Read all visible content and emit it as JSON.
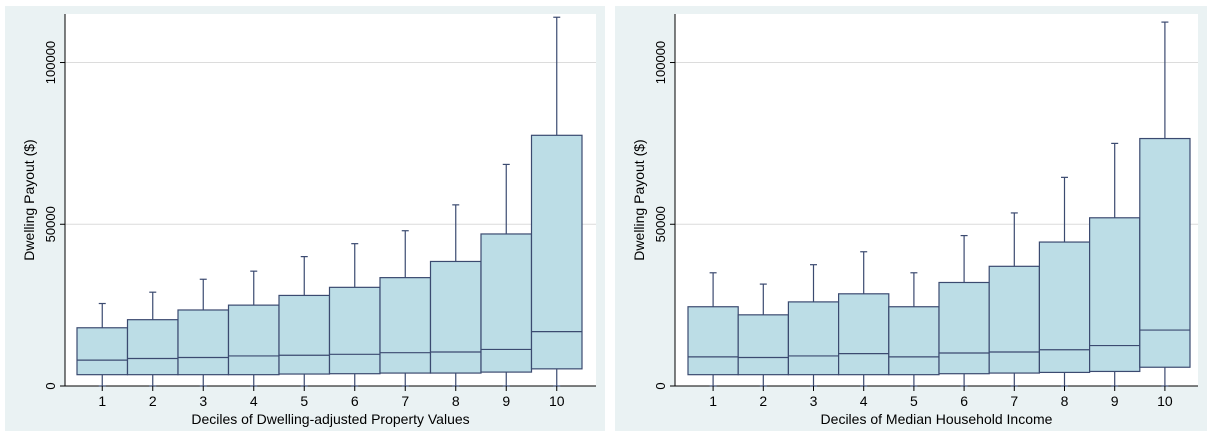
{
  "chart_data": [
    {
      "type": "box",
      "xlabel": "Deciles of Dwelling-adjusted Property Values",
      "ylabel": "Dwelling Payout ($)",
      "ylim": [
        0,
        115000
      ],
      "yticks": [
        0,
        50000,
        100000
      ],
      "categories": [
        "1",
        "2",
        "3",
        "4",
        "5",
        "6",
        "7",
        "8",
        "9",
        "10"
      ],
      "boxes": [
        {
          "low": 0,
          "q1": 3500,
          "median": 8000,
          "q3": 18000,
          "high": 25500
        },
        {
          "low": 0,
          "q1": 3500,
          "median": 8500,
          "q3": 20500,
          "high": 29000
        },
        {
          "low": 0,
          "q1": 3500,
          "median": 8800,
          "q3": 23500,
          "high": 33000
        },
        {
          "low": 0,
          "q1": 3500,
          "median": 9300,
          "q3": 25000,
          "high": 35500
        },
        {
          "low": 0,
          "q1": 3700,
          "median": 9500,
          "q3": 28000,
          "high": 40000
        },
        {
          "low": 0,
          "q1": 3800,
          "median": 9800,
          "q3": 30500,
          "high": 44000
        },
        {
          "low": 0,
          "q1": 4000,
          "median": 10300,
          "q3": 33500,
          "high": 48000
        },
        {
          "low": 0,
          "q1": 4000,
          "median": 10500,
          "q3": 38500,
          "high": 56000
        },
        {
          "low": 0,
          "q1": 4300,
          "median": 11300,
          "q3": 47000,
          "high": 68500
        },
        {
          "low": 0,
          "q1": 5300,
          "median": 16800,
          "q3": 77500,
          "high": 114000
        }
      ],
      "colors": {
        "box_fill": "#bcdde6",
        "stroke": "#3b4a70",
        "grid": "#dcdcdc"
      }
    },
    {
      "type": "box",
      "xlabel": "Deciles of Median Household Income",
      "ylabel": "Dwelling Payout ($)",
      "ylim": [
        0,
        115000
      ],
      "yticks": [
        0,
        50000,
        100000
      ],
      "categories": [
        "1",
        "2",
        "3",
        "4",
        "5",
        "6",
        "7",
        "8",
        "9",
        "10"
      ],
      "boxes": [
        {
          "low": 0,
          "q1": 3500,
          "median": 9000,
          "q3": 24500,
          "high": 35000
        },
        {
          "low": 0,
          "q1": 3500,
          "median": 8800,
          "q3": 22000,
          "high": 31500
        },
        {
          "low": 0,
          "q1": 3500,
          "median": 9300,
          "q3": 26000,
          "high": 37500
        },
        {
          "low": 0,
          "q1": 3500,
          "median": 10000,
          "q3": 28500,
          "high": 41500
        },
        {
          "low": 0,
          "q1": 3500,
          "median": 9000,
          "q3": 24500,
          "high": 35000
        },
        {
          "low": 0,
          "q1": 3800,
          "median": 10200,
          "q3": 32000,
          "high": 46500
        },
        {
          "low": 0,
          "q1": 4000,
          "median": 10500,
          "q3": 37000,
          "high": 53500
        },
        {
          "low": 0,
          "q1": 4200,
          "median": 11200,
          "q3": 44500,
          "high": 64500
        },
        {
          "low": 0,
          "q1": 4500,
          "median": 12500,
          "q3": 52000,
          "high": 75000
        },
        {
          "low": 0,
          "q1": 5800,
          "median": 17300,
          "q3": 76500,
          "high": 112500
        }
      ],
      "colors": {
        "box_fill": "#bcdde6",
        "stroke": "#3b4a70",
        "grid": "#dcdcdc"
      }
    }
  ]
}
